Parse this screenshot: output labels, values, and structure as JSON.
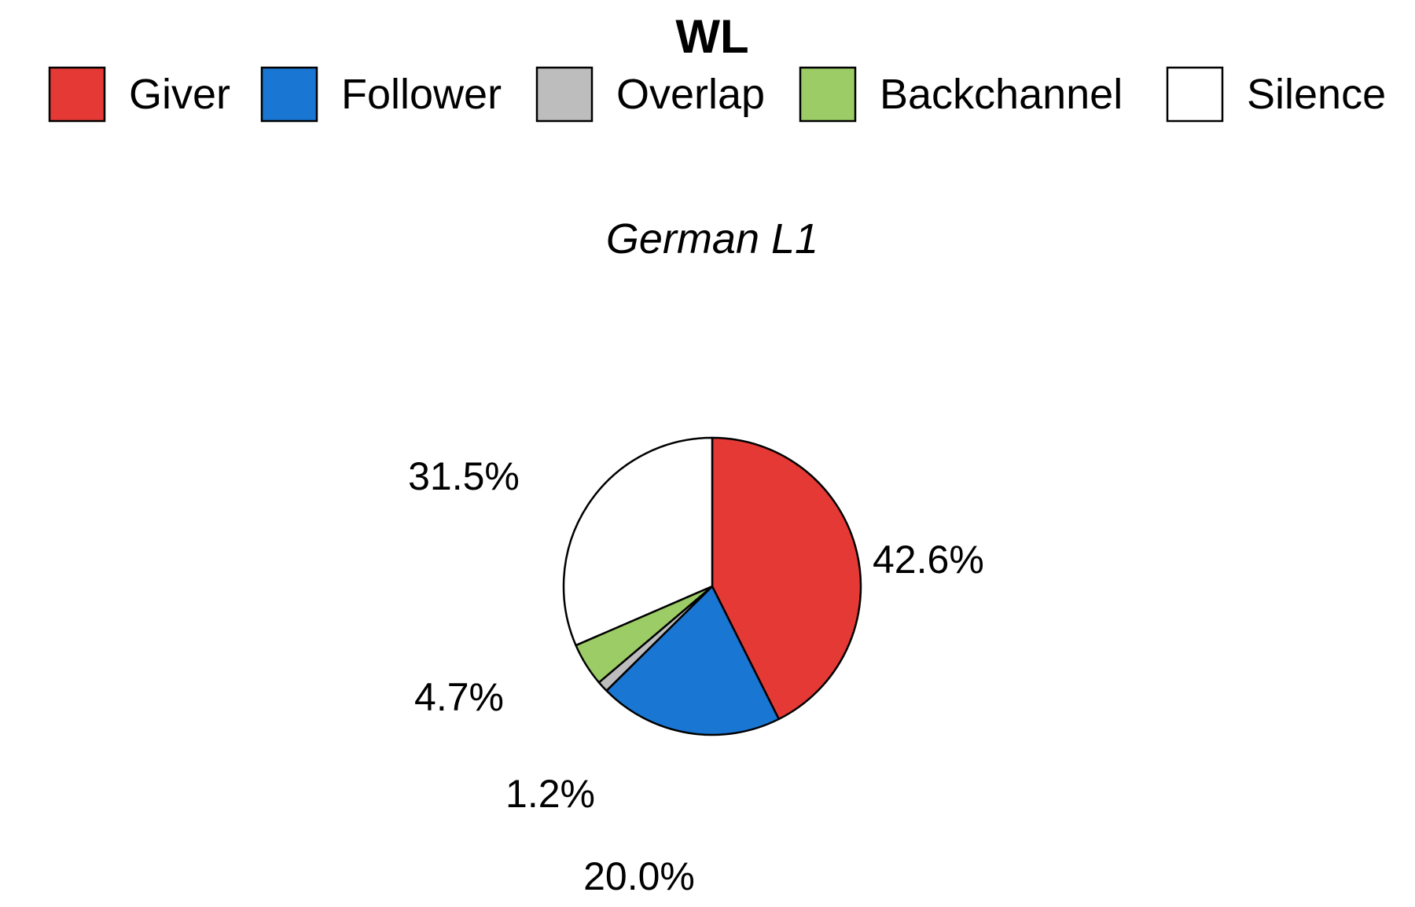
{
  "chart_data": {
    "type": "pie",
    "title": "WL",
    "subtitle": "German L1",
    "legend_position": "top",
    "slices": [
      {
        "label": "Giver",
        "value": 42.6,
        "value_label": "42.6%",
        "color": "#E53935"
      },
      {
        "label": "Follower",
        "value": 20.0,
        "value_label": "20.0%",
        "color": "#1976D2"
      },
      {
        "label": "Overlap",
        "value": 1.2,
        "value_label": "1.2%",
        "color": "#BDBDBD"
      },
      {
        "label": "Backchannel",
        "value": 4.7,
        "value_label": "4.7%",
        "color": "#9CCC65"
      },
      {
        "label": "Silence",
        "value": 31.5,
        "value_label": "31.5%",
        "color": "#FFFFFF"
      }
    ]
  }
}
